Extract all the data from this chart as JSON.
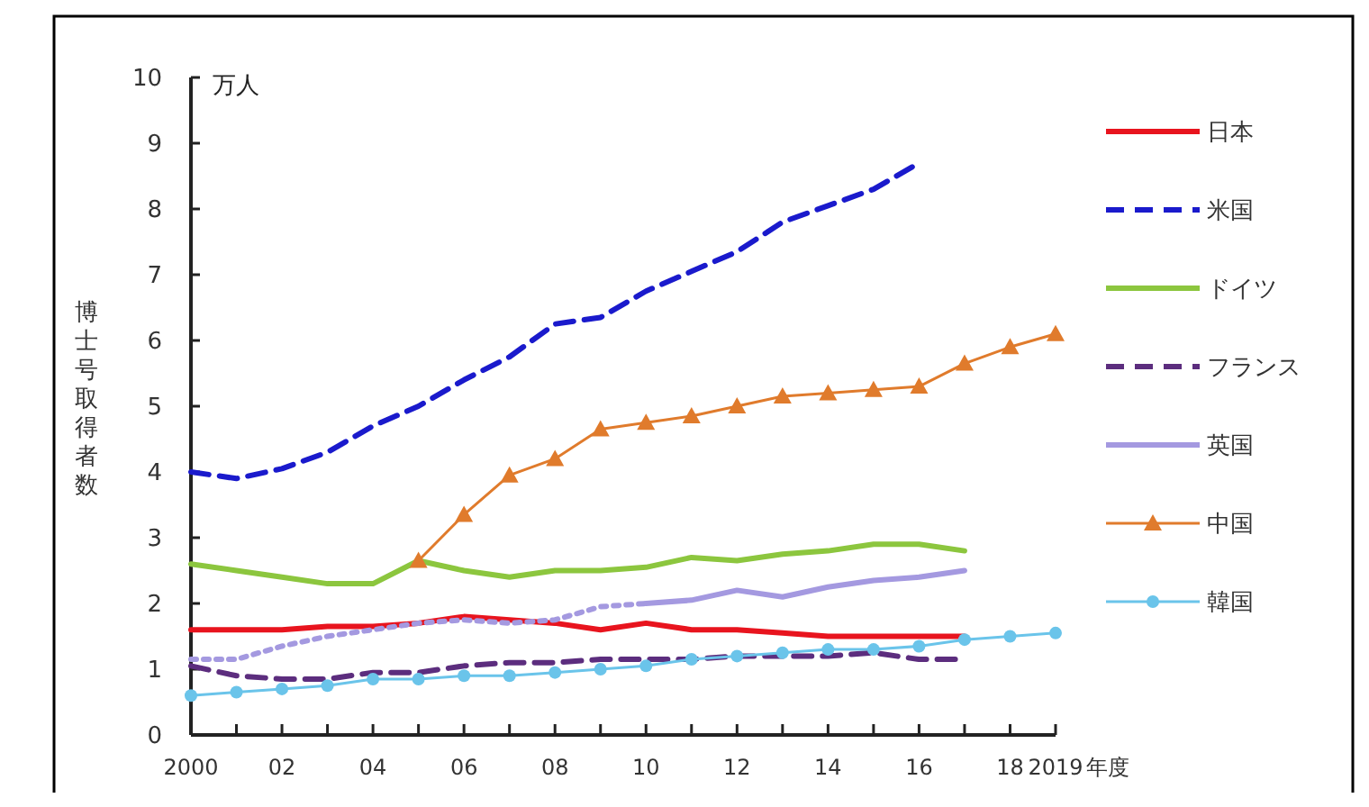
{
  "chart_data": {
    "type": "line",
    "ylabel": "博士号取得者数",
    "annotations": [
      "万人"
    ],
    "xlim": [
      2000,
      2019
    ],
    "ylim": [
      0,
      10
    ],
    "yticks": [
      0,
      1,
      2,
      3,
      4,
      5,
      6,
      7,
      8,
      9,
      10
    ],
    "xticks": [
      {
        "value": 2000,
        "label": "2000"
      },
      {
        "value": 2001,
        "label": null
      },
      {
        "value": 2002,
        "label": "02"
      },
      {
        "value": 2003,
        "label": null
      },
      {
        "value": 2004,
        "label": "04"
      },
      {
        "value": 2005,
        "label": null
      },
      {
        "value": 2006,
        "label": "06"
      },
      {
        "value": 2007,
        "label": null
      },
      {
        "value": 2008,
        "label": "08"
      },
      {
        "value": 2009,
        "label": null
      },
      {
        "value": 2010,
        "label": "10"
      },
      {
        "value": 2011,
        "label": null
      },
      {
        "value": 2012,
        "label": "12"
      },
      {
        "value": 2013,
        "label": null
      },
      {
        "value": 2014,
        "label": "14"
      },
      {
        "value": 2015,
        "label": null
      },
      {
        "value": 2016,
        "label": "16"
      },
      {
        "value": 2017,
        "label": null
      },
      {
        "value": 2018,
        "label": "18"
      },
      {
        "value": 2019,
        "label": "2019"
      }
    ],
    "xlabel": "年度",
    "grid": false,
    "legend": "right",
    "marker": "none",
    "series": [
      {
        "name": "日本",
        "color": "#e8141e",
        "line_style": "solid",
        "x": [
          2000,
          2001,
          2002,
          2003,
          2004,
          2005,
          2006,
          2007,
          2008,
          2009,
          2010,
          2011,
          2012,
          2013,
          2014,
          2015,
          2016,
          2017
        ],
        "values": [
          1.6,
          1.6,
          1.6,
          1.65,
          1.65,
          1.7,
          1.8,
          1.75,
          1.7,
          1.6,
          1.7,
          1.6,
          1.6,
          1.55,
          1.5,
          1.5,
          1.5,
          1.5
        ]
      },
      {
        "name": "米国",
        "color": "#1a1acc",
        "line_style": "dashed",
        "x": [
          2000,
          2001,
          2002,
          2003,
          2004,
          2005,
          2006,
          2007,
          2008,
          2009,
          2010,
          2011,
          2012,
          2013,
          2014,
          2015,
          2016
        ],
        "values": [
          4.0,
          3.9,
          4.05,
          4.3,
          4.7,
          5.0,
          5.4,
          5.75,
          6.25,
          6.35,
          6.75,
          7.05,
          7.35,
          7.8,
          8.05,
          8.3,
          8.7
        ]
      },
      {
        "name": "ドイツ",
        "color": "#8cc63e",
        "line_style": "solid",
        "x": [
          2000,
          2001,
          2002,
          2003,
          2004,
          2005,
          2006,
          2007,
          2008,
          2009,
          2010,
          2011,
          2012,
          2013,
          2014,
          2015,
          2016,
          2017
        ],
        "values": [
          2.6,
          2.5,
          2.4,
          2.3,
          2.3,
          2.65,
          2.5,
          2.4,
          2.5,
          2.5,
          2.55,
          2.7,
          2.65,
          2.75,
          2.8,
          2.9,
          2.9,
          2.8
        ]
      },
      {
        "name": "フランス",
        "color": "#5c2d7e",
        "line_style": "dashed",
        "x": [
          2000,
          2001,
          2002,
          2003,
          2004,
          2005,
          2006,
          2007,
          2008,
          2009,
          2010,
          2011,
          2012,
          2013,
          2014,
          2015,
          2016,
          2017
        ],
        "values": [
          1.05,
          0.9,
          0.85,
          0.85,
          0.95,
          0.95,
          1.05,
          1.1,
          1.1,
          1.15,
          1.15,
          1.15,
          1.2,
          1.2,
          1.2,
          1.25,
          1.15,
          1.15
        ]
      },
      {
        "color": "#a499e0",
        "line_style": "dotted",
        "x": [
          2000,
          2001,
          2002,
          2003,
          2004,
          2005,
          2006,
          2007,
          2008,
          2009,
          2010
        ],
        "values": [
          1.15,
          1.15,
          1.35,
          1.5,
          1.6,
          1.7,
          1.75,
          1.7,
          1.75,
          1.95,
          2.0
        ]
      },
      {
        "name": "英国",
        "color": "#a499e0",
        "line_style": "solid",
        "x": [
          2010,
          2011,
          2012,
          2013,
          2014,
          2015,
          2016,
          2017
        ],
        "values": [
          2.0,
          2.05,
          2.2,
          2.1,
          2.25,
          2.35,
          2.4,
          2.5
        ]
      },
      {
        "name": "中国",
        "color": "#e07b2c",
        "line_style": "solid",
        "marker": "triangle",
        "x": [
          2005,
          2006,
          2007,
          2008,
          2009,
          2010,
          2011,
          2012,
          2013,
          2014,
          2015,
          2016,
          2017,
          2018,
          2019
        ],
        "values": [
          2.65,
          3.35,
          3.95,
          4.2,
          4.65,
          4.75,
          4.85,
          5.0,
          5.15,
          5.2,
          5.25,
          5.3,
          5.65,
          5.9,
          6.1
        ]
      },
      {
        "name": "韓国",
        "color": "#6ac4ea",
        "line_style": "solid",
        "marker": "circle",
        "x": [
          2000,
          2001,
          2002,
          2003,
          2004,
          2005,
          2006,
          2007,
          2008,
          2009,
          2010,
          2011,
          2012,
          2013,
          2014,
          2015,
          2016,
          2017,
          2018,
          2019
        ],
        "values": [
          0.6,
          0.65,
          0.7,
          0.75,
          0.85,
          0.85,
          0.9,
          0.9,
          0.95,
          1.0,
          1.05,
          1.15,
          1.2,
          1.25,
          1.3,
          1.3,
          1.35,
          1.45,
          1.5,
          1.55
        ]
      }
    ]
  }
}
